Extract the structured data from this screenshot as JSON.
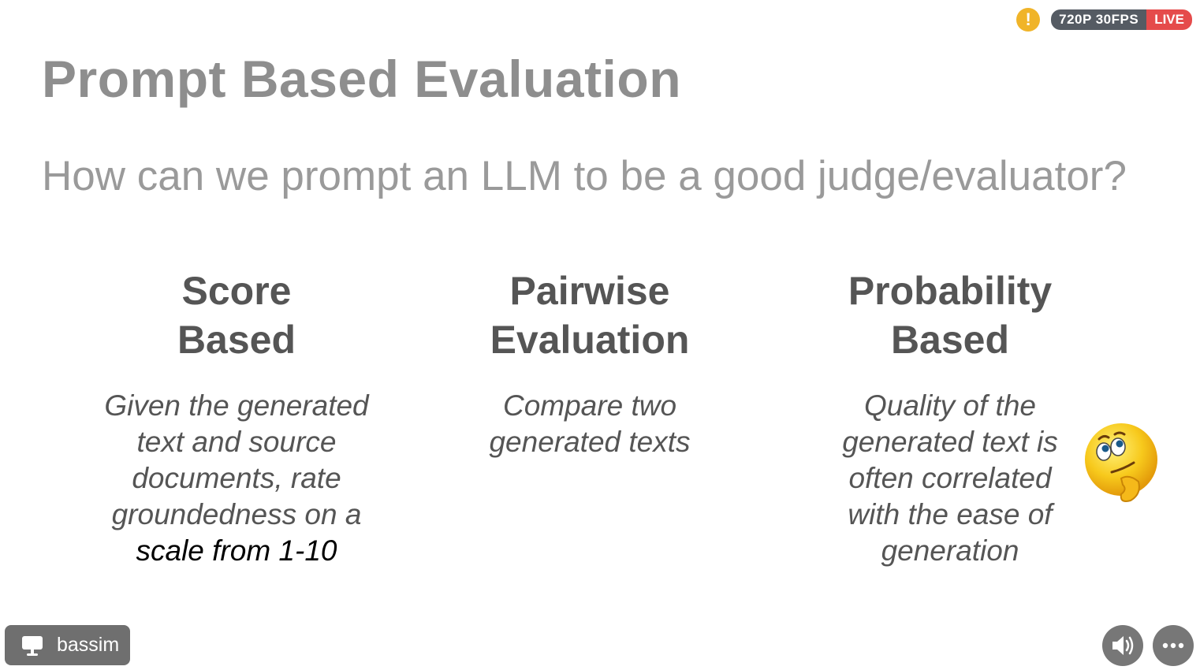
{
  "slide": {
    "title": "Prompt Based Evaluation",
    "subtitle": "How can we prompt an LLM to be a good judge/evaluator?",
    "columns": [
      {
        "heading": [
          "Score",
          "Based"
        ],
        "body": [
          "Given the generated",
          "text and source",
          "documents, rate",
          "groundedness on a"
        ],
        "body_dark": "scale from 1-10"
      },
      {
        "heading": [
          "Pairwise",
          "Evaluation"
        ],
        "body": [
          "Compare two",
          "generated texts"
        ]
      },
      {
        "heading": [
          "Probability",
          "Based"
        ],
        "body": [
          "Quality of the",
          "generated text is",
          "often correlated",
          "with the ease of",
          "generation"
        ]
      }
    ]
  },
  "overlay": {
    "warning_icon": "!",
    "quality": "720P 30FPS",
    "live": "LIVE",
    "speaker_name": "bassim",
    "speaker_icon": "screen-share-icon",
    "audio_icon": "speaker-icon",
    "more_icon": "more-icon"
  },
  "colors": {
    "title": "#8e8e8e",
    "body": "#555555",
    "live": "#e54b4b",
    "badge": "#555b63",
    "warning": "#f0b429"
  }
}
